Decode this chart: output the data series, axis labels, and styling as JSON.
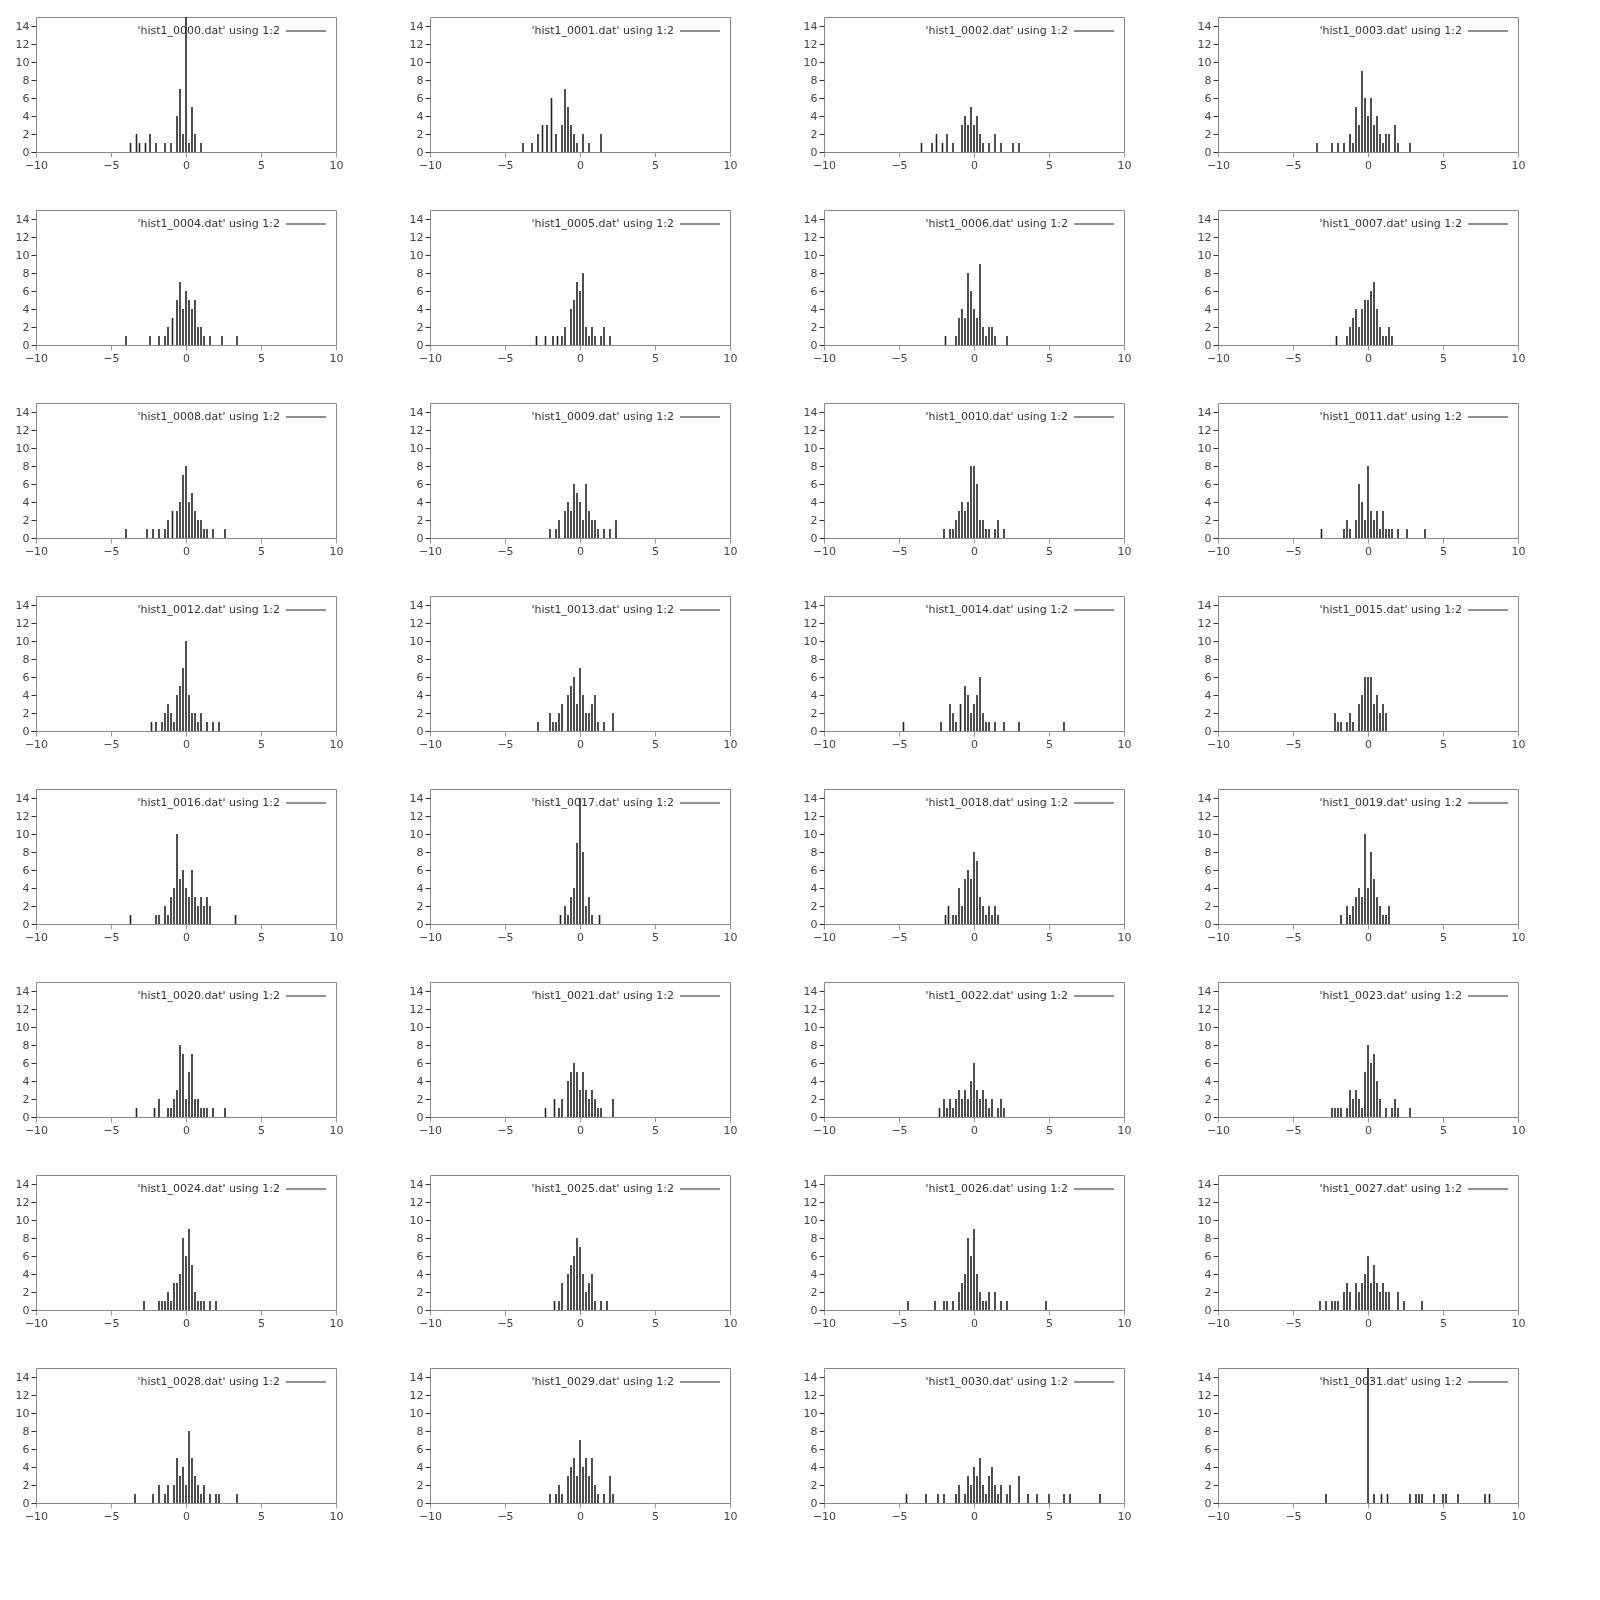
{
  "chart_data": [
    {
      "type": "bar",
      "x": [
        -3.7,
        -3.3,
        -3.1,
        -2.7,
        -2.4,
        -2.0,
        -1.4,
        -1.0,
        -0.6,
        -0.4,
        -0.2,
        0,
        0.2,
        0.4,
        0.6,
        1.0
      ],
      "series": [
        {
          "name": "'hist1_0000.dat' using 1:2",
          "color": "#222222",
          "values": [
            1,
            2,
            1,
            1,
            2,
            1,
            1,
            1,
            4,
            7,
            2,
            15,
            1,
            5,
            2,
            1
          ]
        }
      ],
      "xlim": [
        -10,
        10
      ],
      "xticks": [
        -10,
        -5,
        0,
        5,
        10
      ],
      "ylim": [
        0,
        15
      ],
      "yticks": [
        0,
        2,
        4,
        6,
        8,
        10,
        12,
        14
      ],
      "legend": "top right"
    },
    {
      "type": "bar",
      "x": [
        -3.8,
        -3.2,
        -2.8,
        -2.5,
        -2.2,
        -1.9,
        -1.6,
        -1.2,
        -1.0,
        -0.8,
        -0.6,
        -0.4,
        -0.2,
        0.2,
        0.6,
        1.4
      ],
      "series": [
        {
          "name": "'hist1_0001.dat' using 1:2",
          "color": "#222222",
          "values": [
            1,
            1,
            2,
            3,
            3,
            6,
            2,
            3,
            7,
            5,
            3,
            2,
            1,
            2,
            1,
            2
          ]
        }
      ],
      "xlim": [
        -10,
        10
      ],
      "xticks": [
        -10,
        -5,
        0,
        5,
        10
      ],
      "ylim": [
        0,
        15
      ],
      "yticks": [
        0,
        2,
        4,
        6,
        8,
        10,
        12,
        14
      ],
      "legend": "top right"
    },
    {
      "type": "bar",
      "x": [
        -3.5,
        -2.8,
        -2.5,
        -2.1,
        -1.8,
        -1.4,
        -0.8,
        -0.6,
        -0.4,
        -0.2,
        0,
        0.2,
        0.4,
        0.6,
        1.0,
        1.4,
        1.8,
        2.6,
        3.0
      ],
      "series": [
        {
          "name": "'hist1_0002.dat' using 1:2",
          "color": "#222222",
          "values": [
            1,
            1,
            2,
            1,
            2,
            1,
            3,
            4,
            3,
            5,
            3,
            4,
            2,
            1,
            1,
            2,
            1,
            1,
            1
          ]
        }
      ],
      "xlim": [
        -10,
        10
      ],
      "xticks": [
        -10,
        -5,
        0,
        5,
        10
      ],
      "ylim": [
        0,
        15
      ],
      "yticks": [
        0,
        2,
        4,
        6,
        8,
        10,
        12,
        14
      ],
      "legend": "top right"
    },
    {
      "type": "bar",
      "x": [
        -3.4,
        -2.4,
        -2.0,
        -1.6,
        -1.2,
        -1.0,
        -0.8,
        -0.6,
        -0.4,
        -0.2,
        0,
        0.2,
        0.4,
        0.6,
        0.8,
        1.0,
        1.2,
        1.4,
        1.8,
        2.0,
        2.8
      ],
      "series": [
        {
          "name": "'hist1_0003.dat' using 1:2",
          "color": "#222222",
          "values": [
            1,
            1,
            1,
            1,
            2,
            1,
            5,
            3,
            9,
            6,
            4,
            6,
            3,
            4,
            2,
            1,
            2,
            2,
            3,
            1,
            1
          ]
        }
      ],
      "xlim": [
        -10,
        10
      ],
      "xticks": [
        -10,
        -5,
        0,
        5,
        10
      ],
      "ylim": [
        0,
        15
      ],
      "yticks": [
        0,
        2,
        4,
        6,
        8,
        10,
        12,
        14
      ],
      "legend": "top right"
    },
    {
      "type": "bar",
      "x": [
        -4.0,
        -2.4,
        -1.8,
        -1.4,
        -1.2,
        -0.9,
        -0.6,
        -0.4,
        -0.2,
        0,
        0.2,
        0.4,
        0.6,
        0.8,
        1.0,
        1.2,
        1.6,
        2.4,
        3.4
      ],
      "series": [
        {
          "name": "'hist1_0004.dat' using 1:2",
          "color": "#222222",
          "values": [
            1,
            1,
            1,
            1,
            2,
            3,
            5,
            7,
            4,
            6,
            5,
            4,
            5,
            2,
            2,
            1,
            1,
            1,
            1
          ]
        }
      ],
      "xlim": [
        -10,
        10
      ],
      "xticks": [
        -10,
        -5,
        0,
        5,
        10
      ],
      "ylim": [
        0,
        15
      ],
      "yticks": [
        0,
        2,
        4,
        6,
        8,
        10,
        12,
        14
      ],
      "legend": "top right"
    },
    {
      "type": "bar",
      "x": [
        -2.9,
        -2.3,
        -1.8,
        -1.5,
        -1.2,
        -1.0,
        -0.6,
        -0.4,
        -0.2,
        0,
        0.2,
        0.4,
        0.6,
        0.8,
        1.0,
        1.4,
        1.6,
        2.0
      ],
      "series": [
        {
          "name": "'hist1_0005.dat' using 1:2",
          "color": "#222222",
          "values": [
            1,
            1,
            1,
            1,
            1,
            2,
            4,
            5,
            7,
            6,
            8,
            2,
            1,
            2,
            1,
            1,
            2,
            1
          ]
        }
      ],
      "xlim": [
        -10,
        10
      ],
      "xticks": [
        -10,
        -5,
        0,
        5,
        10
      ],
      "ylim": [
        0,
        15
      ],
      "yticks": [
        0,
        2,
        4,
        6,
        8,
        10,
        12,
        14
      ],
      "legend": "top right"
    },
    {
      "type": "bar",
      "x": [
        -1.9,
        -1.2,
        -1.0,
        -0.8,
        -0.6,
        -0.4,
        -0.2,
        0,
        0.2,
        0.4,
        0.6,
        0.8,
        1.0,
        1.2,
        1.4,
        2.2
      ],
      "series": [
        {
          "name": "'hist1_0006.dat' using 1:2",
          "color": "#222222",
          "values": [
            1,
            1,
            3,
            4,
            3,
            8,
            6,
            4,
            3,
            9,
            2,
            1,
            2,
            2,
            1,
            1
          ]
        }
      ],
      "xlim": [
        -10,
        10
      ],
      "xticks": [
        -10,
        -5,
        0,
        5,
        10
      ],
      "ylim": [
        0,
        15
      ],
      "yticks": [
        0,
        2,
        4,
        6,
        8,
        10,
        12,
        14
      ],
      "legend": "top right"
    },
    {
      "type": "bar",
      "x": [
        -2.1,
        -1.4,
        -1.2,
        -1.0,
        -0.8,
        -0.6,
        -0.4,
        -0.2,
        0,
        0.2,
        0.4,
        0.6,
        0.8,
        1.0,
        1.2,
        1.4,
        1.6
      ],
      "series": [
        {
          "name": "'hist1_0007.dat' using 1:2",
          "color": "#222222",
          "values": [
            1,
            1,
            2,
            3,
            4,
            2,
            4,
            5,
            5,
            6,
            7,
            4,
            2,
            1,
            1,
            2,
            1
          ]
        }
      ],
      "xlim": [
        -10,
        10
      ],
      "xticks": [
        -10,
        -5,
        0,
        5,
        10
      ],
      "ylim": [
        0,
        15
      ],
      "yticks": [
        0,
        2,
        4,
        6,
        8,
        10,
        12,
        14
      ],
      "legend": "top right"
    },
    {
      "type": "bar",
      "x": [
        -4.0,
        -2.6,
        -2.2,
        -1.8,
        -1.4,
        -1.2,
        -0.9,
        -0.6,
        -0.4,
        -0.2,
        0,
        0.2,
        0.4,
        0.6,
        0.8,
        1.0,
        1.2,
        1.4,
        1.8,
        2.6
      ],
      "series": [
        {
          "name": "'hist1_0008.dat' using 1:2",
          "color": "#222222",
          "values": [
            1,
            1,
            1,
            1,
            1,
            2,
            3,
            3,
            4,
            7,
            8,
            4,
            5,
            3,
            2,
            2,
            1,
            1,
            1,
            1
          ]
        }
      ],
      "xlim": [
        -10,
        10
      ],
      "xticks": [
        -10,
        -5,
        0,
        5,
        10
      ],
      "ylim": [
        0,
        15
      ],
      "yticks": [
        0,
        2,
        4,
        6,
        8,
        10,
        12,
        14
      ],
      "legend": "top right"
    },
    {
      "type": "bar",
      "x": [
        -2.0,
        -1.6,
        -1.4,
        -1.0,
        -0.8,
        -0.6,
        -0.4,
        -0.2,
        0,
        0.2,
        0.4,
        0.6,
        0.8,
        1.0,
        1.2,
        1.6,
        2.0,
        2.4
      ],
      "series": [
        {
          "name": "'hist1_0009.dat' using 1:2",
          "color": "#222222",
          "values": [
            1,
            1,
            2,
            3,
            4,
            3,
            6,
            5,
            4,
            2,
            6,
            3,
            2,
            2,
            1,
            1,
            1,
            2
          ]
        }
      ],
      "xlim": [
        -10,
        10
      ],
      "xticks": [
        -10,
        -5,
        0,
        5,
        10
      ],
      "ylim": [
        0,
        15
      ],
      "yticks": [
        0,
        2,
        4,
        6,
        8,
        10,
        12,
        14
      ],
      "legend": "top right"
    },
    {
      "type": "bar",
      "x": [
        -2.0,
        -1.6,
        -1.4,
        -1.2,
        -1.0,
        -0.8,
        -0.6,
        -0.4,
        -0.2,
        0,
        0.2,
        0.4,
        0.6,
        0.8,
        1.0,
        1.4,
        1.6,
        2.0
      ],
      "series": [
        {
          "name": "'hist1_0010.dat' using 1:2",
          "color": "#222222",
          "values": [
            1,
            1,
            1,
            2,
            3,
            4,
            3,
            4,
            8,
            8,
            6,
            2,
            2,
            1,
            1,
            1,
            2,
            1
          ]
        }
      ],
      "xlim": [
        -10,
        10
      ],
      "xticks": [
        -10,
        -5,
        0,
        5,
        10
      ],
      "ylim": [
        0,
        15
      ],
      "yticks": [
        0,
        2,
        4,
        6,
        8,
        10,
        12,
        14
      ],
      "legend": "top right"
    },
    {
      "type": "bar",
      "x": [
        -3.1,
        -1.6,
        -1.4,
        -1.2,
        -0.8,
        -0.6,
        -0.4,
        -0.2,
        0,
        0.2,
        0.4,
        0.6,
        0.8,
        1.0,
        1.2,
        1.4,
        1.6,
        2.0,
        2.6,
        3.8
      ],
      "series": [
        {
          "name": "'hist1_0011.dat' using 1:2",
          "color": "#222222",
          "values": [
            1,
            1,
            2,
            1,
            2,
            6,
            4,
            2,
            8,
            3,
            2,
            3,
            1,
            3,
            1,
            1,
            1,
            1,
            1,
            1
          ]
        }
      ],
      "xlim": [
        -10,
        10
      ],
      "xticks": [
        -10,
        -5,
        0,
        5,
        10
      ],
      "ylim": [
        0,
        15
      ],
      "yticks": [
        0,
        2,
        4,
        6,
        8,
        10,
        12,
        14
      ],
      "legend": "top right"
    },
    {
      "type": "bar",
      "x": [
        -2.3,
        -2.0,
        -1.6,
        -1.4,
        -1.2,
        -1.0,
        -0.8,
        -0.6,
        -0.4,
        -0.2,
        0,
        0.2,
        0.4,
        0.6,
        0.8,
        1.0,
        1.4,
        1.8,
        2.2
      ],
      "series": [
        {
          "name": "'hist1_0012.dat' using 1:2",
          "color": "#222222",
          "values": [
            1,
            1,
            1,
            2,
            3,
            2,
            1,
            4,
            5,
            7,
            10,
            4,
            2,
            2,
            1,
            2,
            1,
            1,
            1
          ]
        }
      ],
      "xlim": [
        -10,
        10
      ],
      "xticks": [
        -10,
        -5,
        0,
        5,
        10
      ],
      "ylim": [
        0,
        15
      ],
      "yticks": [
        0,
        2,
        4,
        6,
        8,
        10,
        12,
        14
      ],
      "legend": "top right"
    },
    {
      "type": "bar",
      "x": [
        -2.8,
        -2.0,
        -1.8,
        -1.6,
        -1.4,
        -1.2,
        -0.8,
        -0.6,
        -0.4,
        -0.2,
        0,
        0.2,
        0.4,
        0.6,
        0.8,
        1.0,
        1.2,
        1.6,
        2.2
      ],
      "series": [
        {
          "name": "'hist1_0013.dat' using 1:2",
          "color": "#222222",
          "values": [
            1,
            2,
            1,
            1,
            2,
            3,
            4,
            5,
            6,
            3,
            7,
            4,
            2,
            2,
            3,
            4,
            1,
            1,
            2
          ]
        }
      ],
      "xlim": [
        -10,
        10
      ],
      "xticks": [
        -10,
        -5,
        0,
        5,
        10
      ],
      "ylim": [
        0,
        15
      ],
      "yticks": [
        0,
        2,
        4,
        6,
        8,
        10,
        12,
        14
      ],
      "legend": "top right"
    },
    {
      "type": "bar",
      "x": [
        -4.7,
        -2.2,
        -1.6,
        -1.4,
        -1.2,
        -0.9,
        -0.6,
        -0.4,
        -0.2,
        0,
        0.2,
        0.4,
        0.6,
        0.8,
        1.0,
        1.4,
        2.0,
        3.0,
        6.0
      ],
      "series": [
        {
          "name": "'hist1_0014.dat' using 1:2",
          "color": "#222222",
          "values": [
            1,
            1,
            3,
            2,
            1,
            3,
            5,
            4,
            2,
            3,
            4,
            6,
            2,
            1,
            1,
            1,
            1,
            1,
            1
          ]
        }
      ],
      "xlim": [
        -10,
        10
      ],
      "xticks": [
        -10,
        -5,
        0,
        5,
        10
      ],
      "ylim": [
        0,
        15
      ],
      "yticks": [
        0,
        2,
        4,
        6,
        8,
        10,
        12,
        14
      ],
      "legend": "top right"
    },
    {
      "type": "bar",
      "x": [
        -2.2,
        -2.0,
        -1.8,
        -1.4,
        -1.2,
        -1.0,
        -0.6,
        -0.4,
        -0.2,
        0,
        0.2,
        0.4,
        0.6,
        0.8,
        1.0,
        1.2
      ],
      "series": [
        {
          "name": "'hist1_0015.dat' using 1:2",
          "color": "#222222",
          "values": [
            2,
            1,
            1,
            1,
            2,
            1,
            3,
            4,
            6,
            6,
            6,
            3,
            4,
            2,
            3,
            2
          ]
        }
      ],
      "xlim": [
        -10,
        10
      ],
      "xticks": [
        -10,
        -5,
        0,
        5,
        10
      ],
      "ylim": [
        0,
        15
      ],
      "yticks": [
        0,
        2,
        4,
        6,
        8,
        10,
        12,
        14
      ],
      "legend": "top right"
    },
    {
      "type": "bar",
      "x": [
        -3.7,
        -2.0,
        -1.8,
        -1.4,
        -1.2,
        -1.0,
        -0.8,
        -0.6,
        -0.4,
        -0.2,
        0,
        0.2,
        0.4,
        0.6,
        0.8,
        1.0,
        1.2,
        1.4,
        1.6,
        3.3
      ],
      "series": [
        {
          "name": "'hist1_0016.dat' using 1:2",
          "color": "#222222",
          "values": [
            1,
            1,
            1,
            2,
            1,
            3,
            4,
            10,
            5,
            6,
            4,
            3,
            6,
            3,
            2,
            3,
            2,
            3,
            2,
            1
          ]
        }
      ],
      "xlim": [
        -10,
        10
      ],
      "xticks": [
        -10,
        -5,
        0,
        5,
        10
      ],
      "ylim": [
        0,
        15
      ],
      "yticks": [
        0,
        2,
        4,
        6,
        8,
        10,
        12,
        14
      ],
      "legend": "top right"
    },
    {
      "type": "bar",
      "x": [
        -1.3,
        -1.0,
        -0.8,
        -0.6,
        -0.4,
        -0.2,
        0,
        0.2,
        0.4,
        0.6,
        0.8,
        1.3
      ],
      "series": [
        {
          "name": "'hist1_0017.dat' using 1:2",
          "color": "#222222",
          "values": [
            1,
            2,
            1,
            3,
            4,
            9,
            14,
            8,
            2,
            3,
            1,
            1
          ]
        }
      ],
      "xlim": [
        -10,
        10
      ],
      "xticks": [
        -10,
        -5,
        0,
        5,
        10
      ],
      "ylim": [
        0,
        15
      ],
      "yticks": [
        0,
        2,
        4,
        6,
        8,
        10,
        12,
        14
      ],
      "legend": "top right"
    },
    {
      "type": "bar",
      "x": [
        -1.9,
        -1.7,
        -1.4,
        -1.2,
        -1.0,
        -0.8,
        -0.6,
        -0.4,
        -0.2,
        0,
        0.2,
        0.4,
        0.6,
        0.8,
        1.0,
        1.2,
        1.4,
        1.6
      ],
      "series": [
        {
          "name": "'hist1_0018.dat' using 1:2",
          "color": "#222222",
          "values": [
            1,
            2,
            1,
            1,
            4,
            2,
            5,
            6,
            5,
            8,
            7,
            3,
            2,
            1,
            2,
            1,
            2,
            1
          ]
        }
      ],
      "xlim": [
        -10,
        10
      ],
      "xticks": [
        -10,
        -5,
        0,
        5,
        10
      ],
      "ylim": [
        0,
        15
      ],
      "yticks": [
        0,
        2,
        4,
        6,
        8,
        10,
        12,
        14
      ],
      "legend": "top right"
    },
    {
      "type": "bar",
      "x": [
        -1.8,
        -1.4,
        -1.2,
        -1.0,
        -0.8,
        -0.6,
        -0.4,
        -0.2,
        0,
        0.2,
        0.4,
        0.6,
        0.8,
        1.0,
        1.2,
        1.4
      ],
      "series": [
        {
          "name": "'hist1_0019.dat' using 1:2",
          "color": "#222222",
          "values": [
            1,
            2,
            1,
            2,
            3,
            4,
            3,
            10,
            4,
            8,
            5,
            3,
            2,
            1,
            1,
            2
          ]
        }
      ],
      "xlim": [
        -10,
        10
      ],
      "xticks": [
        -10,
        -5,
        0,
        5,
        10
      ],
      "ylim": [
        0,
        15
      ],
      "yticks": [
        0,
        2,
        4,
        6,
        8,
        10,
        12,
        14
      ],
      "legend": "top right"
    },
    {
      "type": "bar",
      "x": [
        -3.3,
        -2.1,
        -1.8,
        -1.2,
        -1.0,
        -0.8,
        -0.6,
        -0.4,
        -0.2,
        0,
        0.2,
        0.4,
        0.6,
        0.8,
        1.0,
        1.2,
        1.4,
        1.8,
        2.6
      ],
      "series": [
        {
          "name": "'hist1_0020.dat' using 1:2",
          "color": "#222222",
          "values": [
            1,
            1,
            2,
            1,
            1,
            2,
            3,
            8,
            7,
            2,
            5,
            7,
            2,
            2,
            1,
            1,
            1,
            1,
            1
          ]
        }
      ],
      "xlim": [
        -10,
        10
      ],
      "xticks": [
        -10,
        -5,
        0,
        5,
        10
      ],
      "ylim": [
        0,
        15
      ],
      "yticks": [
        0,
        2,
        4,
        6,
        8,
        10,
        12,
        14
      ],
      "legend": "top right"
    },
    {
      "type": "bar",
      "x": [
        -2.3,
        -1.7,
        -1.4,
        -1.2,
        -0.8,
        -0.6,
        -0.4,
        -0.2,
        0,
        0.2,
        0.4,
        0.6,
        0.8,
        1.0,
        1.2,
        1.4,
        2.2
      ],
      "series": [
        {
          "name": "'hist1_0021.dat' using 1:2",
          "color": "#222222",
          "values": [
            1,
            2,
            1,
            2,
            4,
            5,
            6,
            5,
            3,
            5,
            3,
            2,
            3,
            2,
            1,
            1,
            2
          ]
        }
      ],
      "xlim": [
        -10,
        10
      ],
      "xticks": [
        -10,
        -5,
        0,
        5,
        10
      ],
      "ylim": [
        0,
        15
      ],
      "yticks": [
        0,
        2,
        4,
        6,
        8,
        10,
        12,
        14
      ],
      "legend": "top right"
    },
    {
      "type": "bar",
      "x": [
        -2.3,
        -2.0,
        -1.8,
        -1.6,
        -1.4,
        -1.2,
        -1.0,
        -0.8,
        -0.6,
        -0.4,
        -0.2,
        0,
        0.2,
        0.4,
        0.6,
        0.8,
        1.0,
        1.2,
        1.6,
        1.8,
        2.0
      ],
      "series": [
        {
          "name": "'hist1_0022.dat' using 1:2",
          "color": "#222222",
          "values": [
            1,
            2,
            1,
            2,
            1,
            2,
            3,
            2,
            3,
            2,
            4,
            6,
            3,
            2,
            3,
            2,
            1,
            2,
            1,
            2,
            1
          ]
        }
      ],
      "xlim": [
        -10,
        10
      ],
      "xticks": [
        -10,
        -5,
        0,
        5,
        10
      ],
      "ylim": [
        0,
        15
      ],
      "yticks": [
        0,
        2,
        4,
        6,
        8,
        10,
        12,
        14
      ],
      "legend": "top right"
    },
    {
      "type": "bar",
      "x": [
        -2.4,
        -2.2,
        -2.0,
        -1.8,
        -1.4,
        -1.2,
        -1.0,
        -0.8,
        -0.6,
        -0.4,
        -0.2,
        0,
        0.2,
        0.4,
        0.6,
        0.8,
        1.2,
        1.6,
        1.8,
        2.0,
        2.8
      ],
      "series": [
        {
          "name": "'hist1_0023.dat' using 1:2",
          "color": "#222222",
          "values": [
            1,
            1,
            1,
            1,
            1,
            3,
            2,
            3,
            2,
            1,
            5,
            8,
            6,
            7,
            4,
            2,
            1,
            1,
            2,
            1,
            1
          ]
        }
      ],
      "xlim": [
        -10,
        10
      ],
      "xticks": [
        -10,
        -5,
        0,
        5,
        10
      ],
      "ylim": [
        0,
        15
      ],
      "yticks": [
        0,
        2,
        4,
        6,
        8,
        10,
        12,
        14
      ],
      "legend": "top right"
    },
    {
      "type": "bar",
      "x": [
        -2.8,
        -1.8,
        -1.6,
        -1.4,
        -1.2,
        -1.0,
        -0.8,
        -0.6,
        -0.4,
        -0.2,
        0,
        0.2,
        0.4,
        0.6,
        0.8,
        1.0,
        1.2,
        1.6,
        2.0
      ],
      "series": [
        {
          "name": "'hist1_0024.dat' using 1:2",
          "color": "#222222",
          "values": [
            1,
            1,
            1,
            1,
            2,
            1,
            3,
            3,
            4,
            8,
            6,
            9,
            5,
            2,
            1,
            1,
            1,
            1,
            1
          ]
        }
      ],
      "xlim": [
        -10,
        10
      ],
      "xticks": [
        -10,
        -5,
        0,
        5,
        10
      ],
      "ylim": [
        0,
        15
      ],
      "yticks": [
        0,
        2,
        4,
        6,
        8,
        10,
        12,
        14
      ],
      "legend": "top right"
    },
    {
      "type": "bar",
      "x": [
        -1.7,
        -1.4,
        -1.2,
        -0.8,
        -0.6,
        -0.4,
        -0.2,
        0,
        0.2,
        0.4,
        0.6,
        0.8,
        1.0,
        1.4,
        1.8
      ],
      "series": [
        {
          "name": "'hist1_0025.dat' using 1:2",
          "color": "#222222",
          "values": [
            1,
            1,
            3,
            4,
            5,
            6,
            8,
            7,
            4,
            2,
            3,
            4,
            1,
            1,
            1
          ]
        }
      ],
      "xlim": [
        -10,
        10
      ],
      "xticks": [
        -10,
        -5,
        0,
        5,
        10
      ],
      "ylim": [
        0,
        15
      ],
      "yticks": [
        0,
        2,
        4,
        6,
        8,
        10,
        12,
        14
      ],
      "legend": "top right"
    },
    {
      "type": "bar",
      "x": [
        -4.4,
        -2.6,
        -2.0,
        -1.8,
        -1.4,
        -1.0,
        -0.8,
        -0.6,
        -0.4,
        -0.2,
        0,
        0.2,
        0.4,
        0.6,
        0.8,
        1.0,
        1.4,
        1.8,
        2.2,
        4.8
      ],
      "series": [
        {
          "name": "'hist1_0026.dat' using 1:2",
          "color": "#222222",
          "values": [
            1,
            1,
            1,
            1,
            1,
            2,
            3,
            4,
            8,
            6,
            9,
            4,
            2,
            1,
            1,
            2,
            2,
            1,
            1,
            1
          ]
        }
      ],
      "xlim": [
        -10,
        10
      ],
      "xticks": [
        -10,
        -5,
        0,
        5,
        10
      ],
      "ylim": [
        0,
        15
      ],
      "yticks": [
        0,
        2,
        4,
        6,
        8,
        10,
        12,
        14
      ],
      "legend": "top right"
    },
    {
      "type": "bar",
      "x": [
        -3.2,
        -2.8,
        -2.4,
        -2.2,
        -2.0,
        -1.6,
        -1.4,
        -1.2,
        -0.8,
        -0.6,
        -0.4,
        -0.2,
        0,
        0.2,
        0.4,
        0.6,
        0.8,
        1.0,
        1.2,
        1.4,
        2.0,
        2.4,
        3.6
      ],
      "series": [
        {
          "name": "'hist1_0027.dat' using 1:2",
          "color": "#222222",
          "values": [
            1,
            1,
            1,
            1,
            1,
            2,
            3,
            2,
            3,
            2,
            3,
            4,
            6,
            3,
            5,
            3,
            2,
            3,
            2,
            2,
            2,
            1,
            1
          ]
        }
      ],
      "xlim": [
        -10,
        10
      ],
      "xticks": [
        -10,
        -5,
        0,
        5,
        10
      ],
      "ylim": [
        0,
        15
      ],
      "yticks": [
        0,
        2,
        4,
        6,
        8,
        10,
        12,
        14
      ],
      "legend": "top right"
    },
    {
      "type": "bar",
      "x": [
        -3.4,
        -2.2,
        -1.8,
        -1.4,
        -1.2,
        -0.8,
        -0.6,
        -0.4,
        -0.2,
        0,
        0.2,
        0.4,
        0.6,
        0.8,
        1.0,
        1.2,
        1.6,
        2.0,
        2.2,
        3.4
      ],
      "series": [
        {
          "name": "'hist1_0028.dat' using 1:2",
          "color": "#222222",
          "values": [
            1,
            1,
            2,
            1,
            2,
            2,
            5,
            3,
            4,
            2,
            8,
            5,
            3,
            2,
            1,
            2,
            1,
            1,
            1,
            1
          ]
        }
      ],
      "xlim": [
        -10,
        10
      ],
      "xticks": [
        -10,
        -5,
        0,
        5,
        10
      ],
      "ylim": [
        0,
        15
      ],
      "yticks": [
        0,
        2,
        4,
        6,
        8,
        10,
        12,
        14
      ],
      "legend": "top right"
    },
    {
      "type": "bar",
      "x": [
        -2.0,
        -1.6,
        -1.4,
        -1.2,
        -0.8,
        -0.6,
        -0.4,
        -0.2,
        0,
        0.2,
        0.4,
        0.6,
        0.8,
        1.0,
        1.2,
        1.6,
        2.0,
        2.2
      ],
      "series": [
        {
          "name": "'hist1_0029.dat' using 1:2",
          "color": "#222222",
          "values": [
            1,
            1,
            2,
            1,
            3,
            4,
            5,
            3,
            7,
            4,
            5,
            3,
            5,
            2,
            1,
            1,
            3,
            1
          ]
        }
      ],
      "xlim": [
        -10,
        10
      ],
      "xticks": [
        -10,
        -5,
        0,
        5,
        10
      ],
      "ylim": [
        0,
        15
      ],
      "yticks": [
        0,
        2,
        4,
        6,
        8,
        10,
        12,
        14
      ],
      "legend": "top right"
    },
    {
      "type": "bar",
      "x": [
        -4.5,
        -3.2,
        -2.4,
        -2.0,
        -1.2,
        -1.0,
        -0.6,
        -0.4,
        -0.2,
        0,
        0.2,
        0.4,
        0.6,
        0.8,
        1.0,
        1.2,
        1.4,
        1.6,
        1.8,
        2.2,
        2.4,
        3.0,
        3.6,
        4.2,
        5.0,
        6.0,
        6.4,
        8.4
      ],
      "series": [
        {
          "name": "'hist1_0030.dat' using 1:2",
          "color": "#222222",
          "values": [
            1,
            1,
            1,
            1,
            1,
            2,
            1,
            3,
            2,
            4,
            3,
            5,
            2,
            1,
            3,
            4,
            2,
            1,
            2,
            1,
            2,
            3,
            1,
            1,
            1,
            1,
            1,
            1
          ]
        }
      ],
      "xlim": [
        -10,
        10
      ],
      "xticks": [
        -10,
        -5,
        0,
        5,
        10
      ],
      "ylim": [
        0,
        15
      ],
      "yticks": [
        0,
        2,
        4,
        6,
        8,
        10,
        12,
        14
      ],
      "legend": "top right"
    },
    {
      "type": "bar",
      "x": [
        -2.8,
        0,
        0.4,
        0.9,
        1.3,
        2.8,
        3.2,
        3.4,
        3.6,
        4.4,
        5.0,
        5.2,
        6.0,
        7.8,
        8.1
      ],
      "series": [
        {
          "name": "'hist1_0031.dat' using 1:2",
          "color": "#222222",
          "values": [
            1,
            15,
            1,
            1,
            1,
            1,
            1,
            1,
            1,
            1,
            1,
            1,
            1,
            1,
            1
          ]
        }
      ],
      "xlim": [
        -10,
        10
      ],
      "xticks": [
        -10,
        -5,
        0,
        5,
        10
      ],
      "ylim": [
        0,
        15
      ],
      "yticks": [
        0,
        2,
        4,
        6,
        8,
        10,
        12,
        14
      ],
      "legend": "top right"
    }
  ]
}
